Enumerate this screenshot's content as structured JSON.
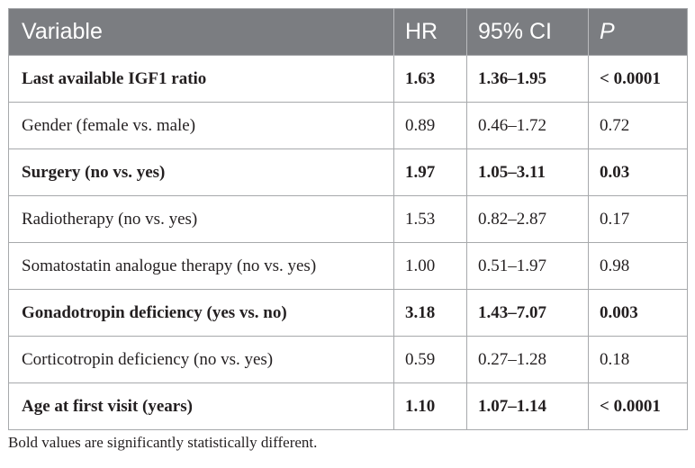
{
  "table": {
    "headers": {
      "variable": "Variable",
      "hr": "HR",
      "ci": "95% CI",
      "p": "P"
    },
    "rows": [
      {
        "variable": "Last available IGF1 ratio",
        "hr": "1.63",
        "ci": "1.36–1.95",
        "p": "< 0.0001",
        "bold": true
      },
      {
        "variable": "Gender (female vs. male)",
        "hr": "0.89",
        "ci": "0.46–1.72",
        "p": "0.72",
        "bold": false
      },
      {
        "variable": "Surgery (no vs. yes)",
        "hr": "1.97",
        "ci": "1.05–3.11",
        "p": "0.03",
        "bold": true
      },
      {
        "variable": "Radiotherapy (no vs. yes)",
        "hr": "1.53",
        "ci": "0.82–2.87",
        "p": "0.17",
        "bold": false
      },
      {
        "variable": "Somatostatin analogue therapy (no vs. yes)",
        "hr": "1.00",
        "ci": "0.51–1.97",
        "p": "0.98",
        "bold": false
      },
      {
        "variable": "Gonadotropin deficiency (yes vs. no)",
        "hr": "3.18",
        "ci": "1.43–7.07",
        "p": "0.003",
        "bold": true
      },
      {
        "variable": "Corticotropin deficiency (no vs. yes)",
        "hr": "0.59",
        "ci": "0.27–1.28",
        "p": "0.18",
        "bold": false
      },
      {
        "variable": "Age at first visit (years)",
        "hr": "1.10",
        "ci": "1.07–1.14",
        "p": "< 0.0001",
        "bold": true
      }
    ]
  },
  "footnote": "Bold values are significantly statistically different.",
  "colors": {
    "header_background": "#7b7d81",
    "header_text": "#ffffff",
    "grid_line": "#a7a9ac",
    "body_text": "#231f20"
  }
}
